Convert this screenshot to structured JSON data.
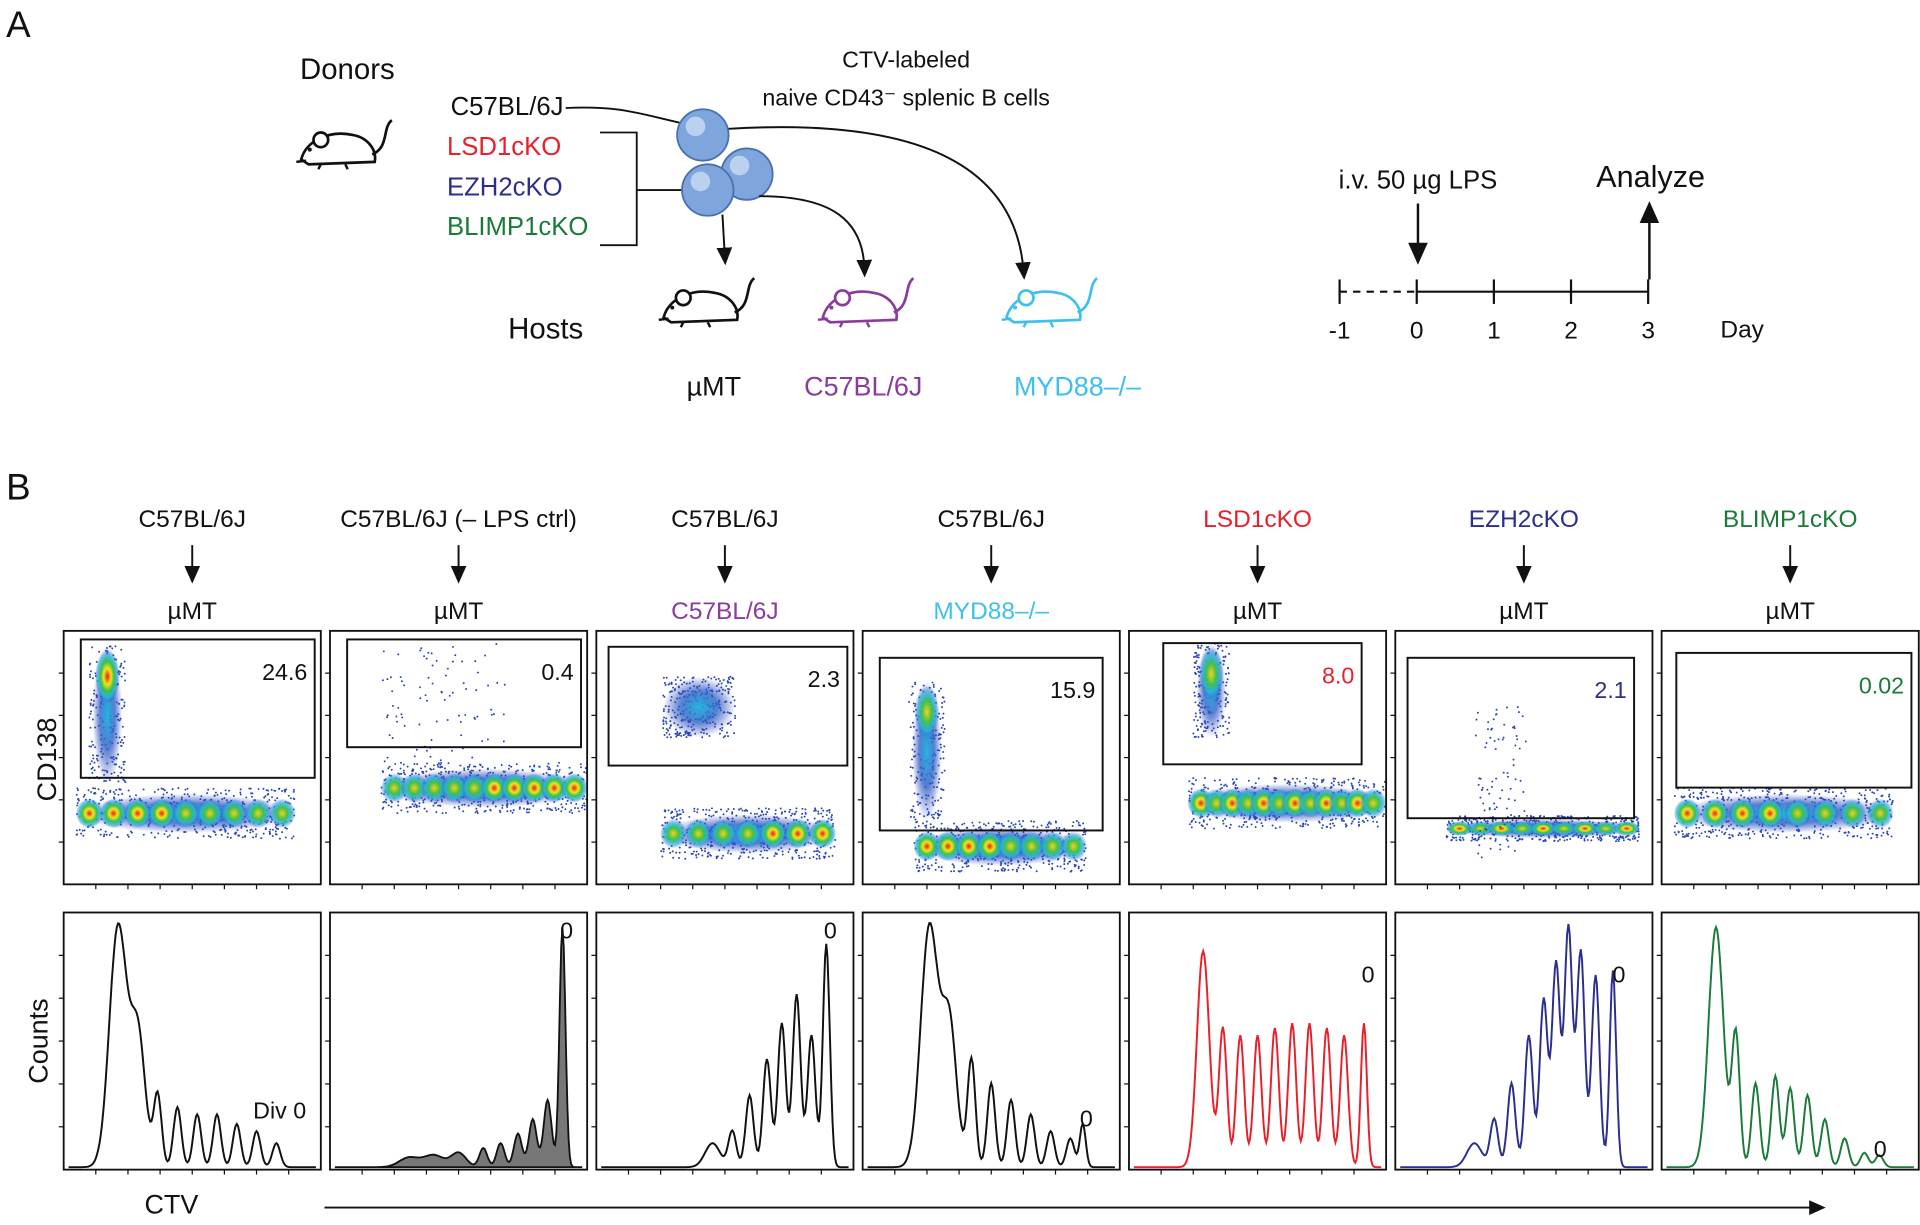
{
  "panel_a": {
    "label": "A",
    "donors_title": "Donors",
    "donors": [
      {
        "name": "C57BL/6J",
        "color": "#111111"
      },
      {
        "name": "LSD1cKO",
        "color": "#e8202a"
      },
      {
        "name": "EZH2cKO",
        "color": "#2b2e8c"
      },
      {
        "name": "BLIMP1cKO",
        "color": "#1b7a3a"
      }
    ],
    "cells_label": [
      "CTV-labeled",
      "naive CD43⁻ splenic B cells"
    ],
    "hosts_title": "Hosts",
    "hosts": [
      {
        "name": "µMT",
        "color": "#111111"
      },
      {
        "name": "C57BL/6J",
        "color": "#8b3a9e"
      },
      {
        "name": "MYD88–/–",
        "color": "#3fbfec"
      }
    ],
    "timeline": {
      "injection": "i.v. 50 µg LPS",
      "analyze": "Analyze",
      "ticks": [
        -1,
        0,
        1,
        2,
        3
      ],
      "unit": "Day"
    }
  },
  "panel_b": {
    "label": "B",
    "y_label_top": "CD138",
    "y_label_bottom": "Counts",
    "x_label": "CTV",
    "columns": [
      {
        "donor": "C57BL/6J",
        "donor_color": "#111111",
        "host": "µMT",
        "host_color": "#111111",
        "gate_percent": "24.6",
        "gate_color": "#111111",
        "div0_label": "Div 0",
        "hist_color": "#111111"
      },
      {
        "donor": "C57BL/6J (– LPS ctrl)",
        "donor_color": "#111111",
        "host": "µMT",
        "host_color": "#111111",
        "gate_percent": "0.4",
        "gate_color": "#111111",
        "div0_label": "0",
        "hist_color": "#111111"
      },
      {
        "donor": "C57BL/6J",
        "donor_color": "#111111",
        "host": "C57BL/6J",
        "host_color": "#8b3a9e",
        "gate_percent": "2.3",
        "gate_color": "#111111",
        "div0_label": "0",
        "hist_color": "#111111"
      },
      {
        "donor": "C57BL/6J",
        "donor_color": "#111111",
        "host": "MYD88–/–",
        "host_color": "#3fbfec",
        "gate_percent": "15.9",
        "gate_color": "#111111",
        "div0_label": "0",
        "hist_color": "#111111"
      },
      {
        "donor": "LSD1cKO",
        "donor_color": "#e8202a",
        "host": "µMT",
        "host_color": "#111111",
        "gate_percent": "8.0",
        "gate_color": "#e8202a",
        "div0_label": "0",
        "hist_color": "#e8202a"
      },
      {
        "donor": "EZH2cKO",
        "donor_color": "#2b2e8c",
        "host": "µMT",
        "host_color": "#111111",
        "gate_percent": "2.1",
        "gate_color": "#2b2e8c",
        "div0_label": "0",
        "hist_color": "#2b2e8c"
      },
      {
        "donor": "BLIMP1cKO",
        "donor_color": "#1b7a3a",
        "host": "µMT",
        "host_color": "#111111",
        "gate_percent": "0.02",
        "gate_color": "#1b7a3a",
        "div0_label": "0",
        "hist_color": "#1b7a3a"
      }
    ]
  }
}
